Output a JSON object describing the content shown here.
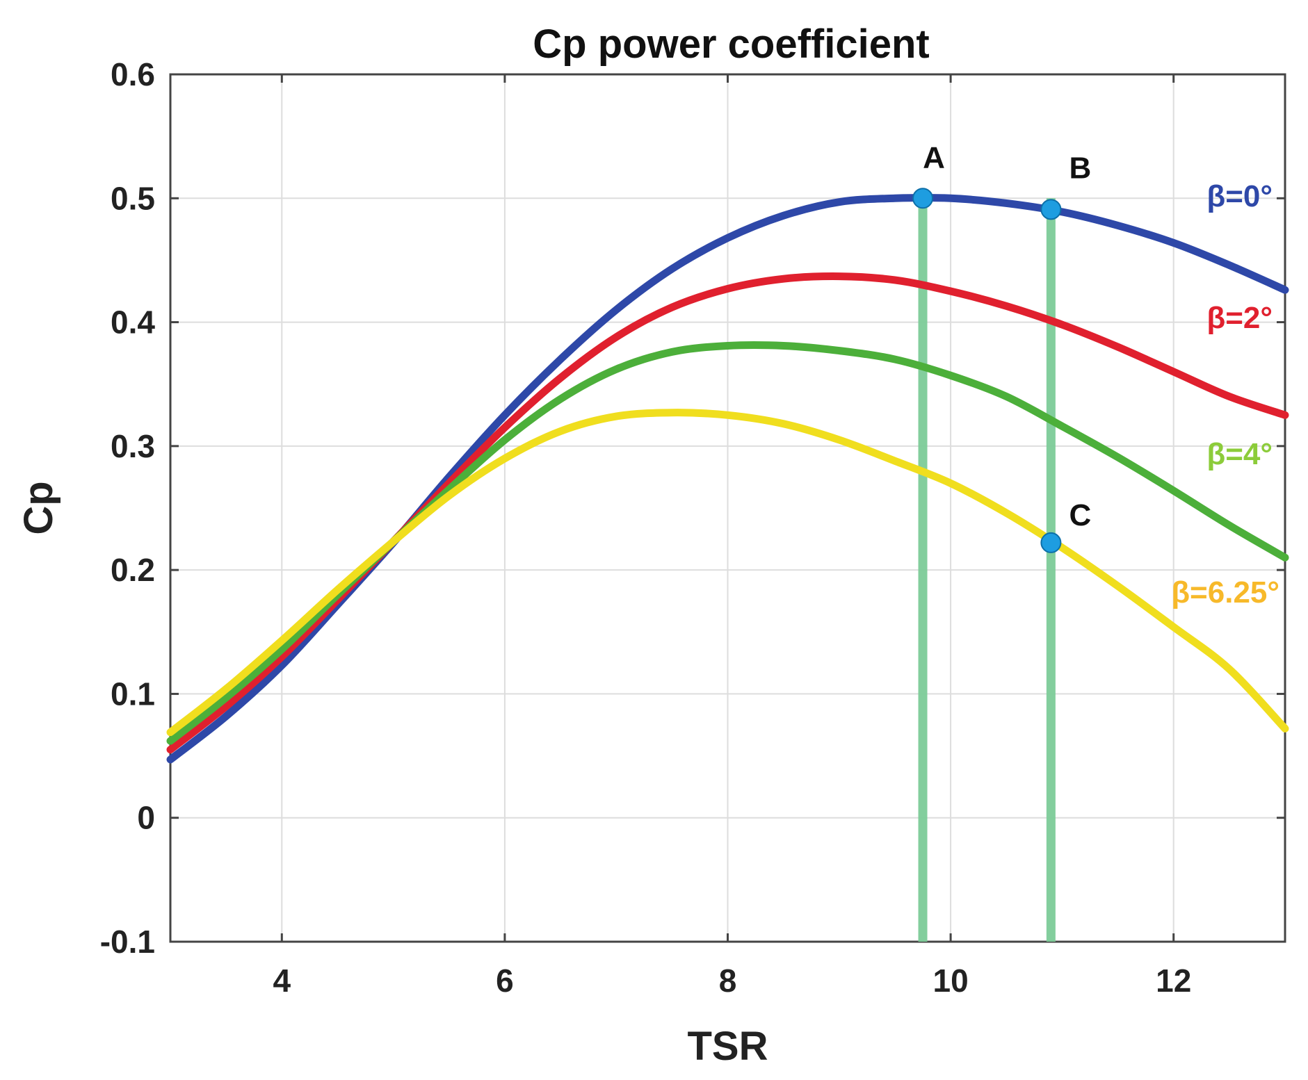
{
  "chart_data": {
    "type": "line",
    "title": "Cp power coefficient",
    "xlabel": "TSR",
    "ylabel": "Cp",
    "xlim": [
      3,
      13
    ],
    "ylim": [
      -0.1,
      0.6
    ],
    "grid": true,
    "x_ticks": [
      4,
      6,
      8,
      10,
      12
    ],
    "x_tick_labels": [
      "4",
      "6",
      "8",
      "10",
      "12"
    ],
    "y_ticks": [
      -0.1,
      0,
      0.1,
      0.2,
      0.3,
      0.4,
      0.5,
      0.6
    ],
    "y_tick_labels": [
      "-0.1",
      "0",
      "0.1",
      "0.2",
      "0.3",
      "0.4",
      "0.5",
      "0.6"
    ],
    "x": [
      3,
      3.5,
      4,
      4.5,
      5,
      5.5,
      6,
      6.5,
      7,
      7.5,
      8,
      8.5,
      9,
      9.5,
      10,
      10.5,
      11,
      11.5,
      12,
      12.5,
      13
    ],
    "series": [
      {
        "name": "β=0°",
        "color": "#2e48a8",
        "values": [
          0.047,
          0.082,
          0.123,
          0.172,
          0.222,
          0.275,
          0.325,
          0.37,
          0.41,
          0.443,
          0.468,
          0.486,
          0.497,
          0.5,
          0.5,
          0.496,
          0.489,
          0.478,
          0.464,
          0.446,
          0.426
        ]
      },
      {
        "name": "β=2°",
        "color": "#e0202e",
        "values": [
          0.055,
          0.09,
          0.13,
          0.176,
          0.223,
          0.27,
          0.315,
          0.355,
          0.388,
          0.412,
          0.427,
          0.435,
          0.437,
          0.434,
          0.425,
          0.413,
          0.398,
          0.38,
          0.36,
          0.34,
          0.325
        ]
      },
      {
        "name": "β=4°",
        "color": "#4caf3a",
        "values": [
          0.062,
          0.097,
          0.136,
          0.18,
          0.223,
          0.265,
          0.305,
          0.338,
          0.362,
          0.376,
          0.381,
          0.381,
          0.377,
          0.37,
          0.357,
          0.34,
          0.316,
          0.291,
          0.264,
          0.236,
          0.21
        ]
      },
      {
        "name": "β=6.25°",
        "color": "#f0de1e",
        "values": [
          0.069,
          0.104,
          0.143,
          0.184,
          0.223,
          0.26,
          0.29,
          0.312,
          0.324,
          0.327,
          0.325,
          0.318,
          0.305,
          0.288,
          0.27,
          0.246,
          0.218,
          0.187,
          0.154,
          0.12,
          0.072
        ]
      }
    ],
    "series_label_colors": [
      "#2e48a8",
      "#e0202e",
      "#8ccc3a",
      "#f7b92a"
    ],
    "vertical_lines": [
      {
        "name": "line-A",
        "x": 9.75,
        "color": "#7ccb98"
      },
      {
        "name": "line-BC",
        "x": 10.9,
        "color": "#7ccb98"
      }
    ],
    "points": [
      {
        "label": "A",
        "x": 9.75,
        "y": 0.5,
        "color": "#1e9de0"
      },
      {
        "label": "B",
        "x": 10.9,
        "y": 0.491,
        "color": "#1e9de0"
      },
      {
        "label": "C",
        "x": 10.9,
        "y": 0.222,
        "color": "#1e9de0"
      }
    ]
  }
}
